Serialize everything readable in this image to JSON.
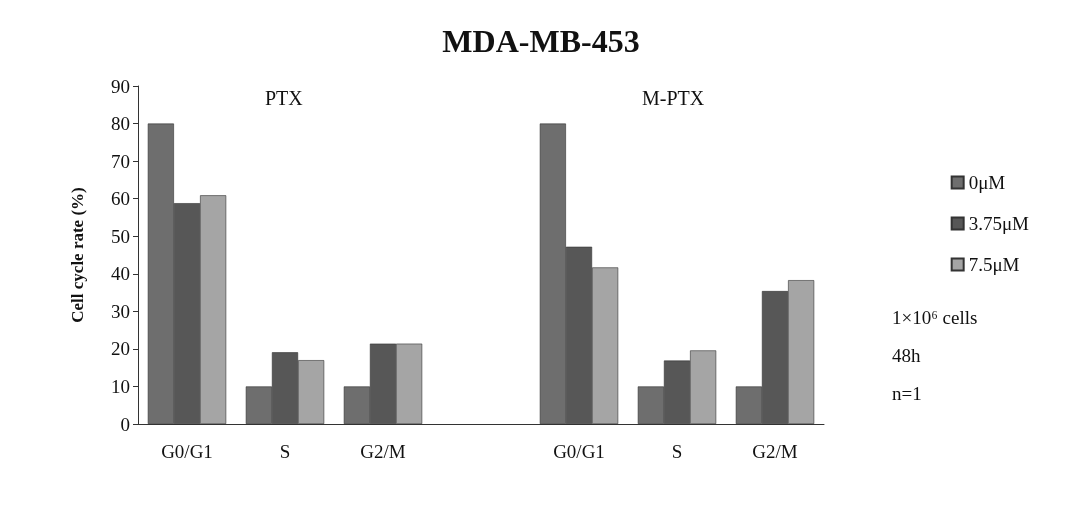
{
  "chart_data": {
    "type": "bar",
    "title": "MDA-MB-453",
    "ylabel": "Cell cycle rate (%)",
    "categories": [
      "G0/G1",
      "S",
      "G2/M",
      null,
      "G0/G1",
      "S",
      "G2/M"
    ],
    "series": [
      {
        "name": "0μM",
        "color": "#6e6e6e",
        "values": [
          80,
          10,
          10,
          null,
          80,
          10,
          10
        ]
      },
      {
        "name": "3.75μM",
        "color": "#575757",
        "values": [
          58.8,
          19.1,
          21.4,
          null,
          47.2,
          16.9,
          35.4
        ]
      },
      {
        "name": "7.5μM",
        "color": "#a5a5a5",
        "values": [
          60.9,
          17,
          21.4,
          null,
          41.7,
          19.6,
          38.3
        ]
      }
    ],
    "ylim": [
      0,
      90
    ],
    "yticks": [
      0,
      10,
      20,
      30,
      40,
      50,
      60,
      70,
      80,
      90
    ],
    "grid": false,
    "legend": "right",
    "annotations": [
      "PTX",
      "M-PTX",
      "1×10⁶ cells",
      "48h",
      "n=1"
    ]
  }
}
